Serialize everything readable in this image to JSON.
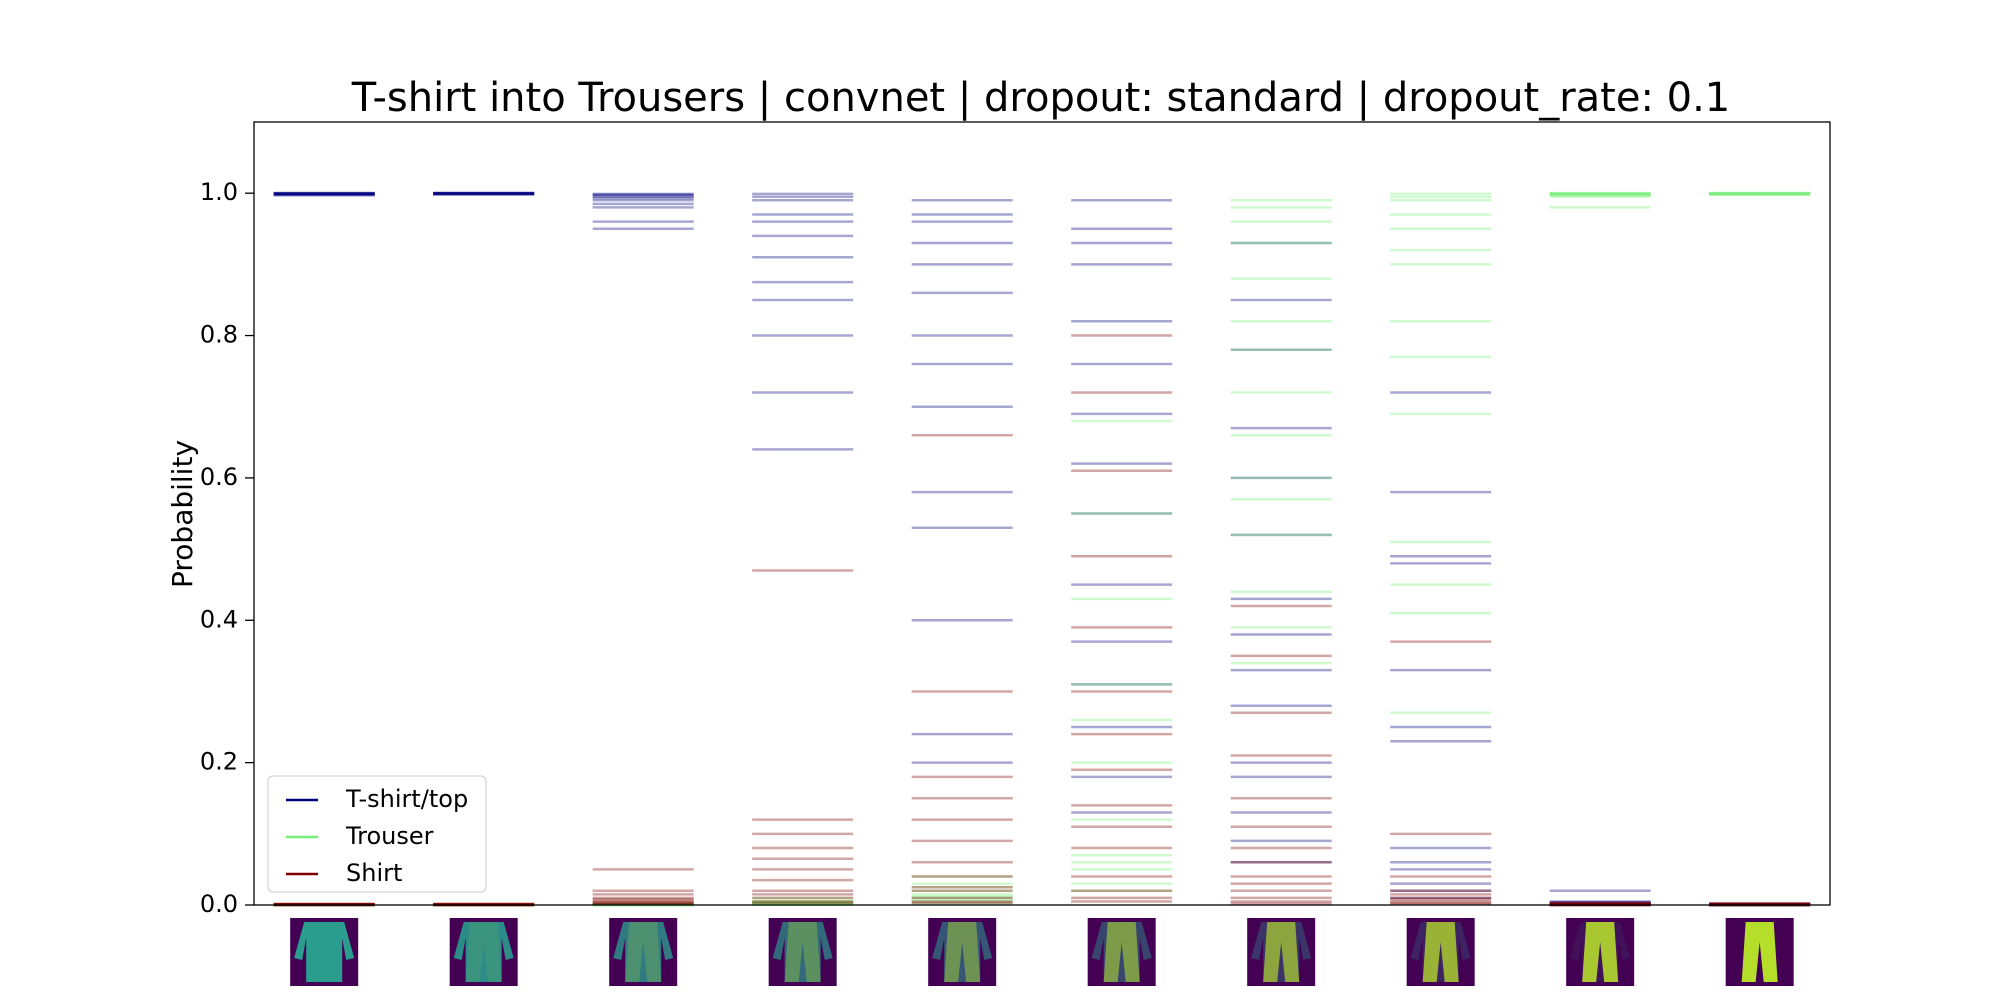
{
  "chart_data": {
    "type": "strip",
    "title": "T-shirt into Trousers | convnet | dropout: standard | dropout_rate: 0.1",
    "y_label": "Probability",
    "ylim": [
      0,
      1.1
    ],
    "yticks": [
      {
        "value": 0,
        "label": "0.0"
      },
      0.2,
      0.4,
      0.6,
      0.8,
      {
        "value": 1,
        "label": "1.0"
      }
    ],
    "legend": "lower left",
    "series": [
      {
        "name": "T-shirt/top",
        "color": "#000080",
        "values": [
          [
            0.999,
            1.0,
            0.998,
            0.999,
            1.0,
            0.999,
            0.997,
            1.0,
            0.999,
            0.998
          ],
          [
            1.0,
            0.999,
            1.0,
            0.999,
            0.998,
            1.0,
            0.999,
            1.0,
            0.999,
            1.0
          ],
          [
            0.999,
            0.995,
            0.99,
            0.985,
            0.998,
            0.96,
            0.95,
            0.993,
            0.997,
            0.98
          ],
          [
            0.999,
            0.99,
            0.97,
            0.94,
            0.91,
            0.875,
            0.85,
            0.8,
            0.72,
            0.64,
            0.995,
            0.96
          ],
          [
            0.99,
            0.96,
            0.93,
            0.9,
            0.86,
            0.8,
            0.76,
            0.7,
            0.58,
            0.53,
            0.4,
            0.24,
            0.2,
            0.97
          ],
          [
            0.99,
            0.95,
            0.9,
            0.82,
            0.76,
            0.69,
            0.62,
            0.55,
            0.45,
            0.37,
            0.31,
            0.25,
            0.18,
            0.13,
            0.93
          ],
          [
            0.93,
            0.85,
            0.78,
            0.67,
            0.6,
            0.52,
            0.43,
            0.38,
            0.33,
            0.28,
            0.2,
            0.18,
            0.13,
            0.09,
            0.06
          ],
          [
            0.72,
            0.58,
            0.49,
            0.48,
            0.33,
            0.25,
            0.23,
            0.08,
            0.06,
            0.05,
            0.03,
            0.02,
            0.01
          ],
          [
            0.02,
            0.005,
            0.001,
            0.003,
            0.0,
            0.002,
            0.001,
            0.0,
            0.004,
            0.001
          ],
          [
            0.001,
            0.0,
            0.002,
            0.001,
            0.0,
            0.001,
            0.0,
            0.002,
            0.001,
            0.0
          ]
        ]
      },
      {
        "name": "Trouser",
        "color": "#77ee77",
        "values": [
          [
            0.0,
            0.0,
            0.001,
            0.0,
            0.0,
            0.0,
            0.001,
            0.0,
            0.0,
            0.0
          ],
          [
            0.0,
            0.001,
            0.0,
            0.0,
            0.0,
            0.0,
            0.0,
            0.001,
            0.0,
            0.0
          ],
          [
            0.0,
            0.001,
            0.002,
            0.0,
            0.001,
            0.0,
            0.0,
            0.001,
            0.0,
            0.002
          ],
          [
            0.002,
            0.005,
            0.001,
            0.003,
            0.01,
            0.0,
            0.002,
            0.004,
            0.001,
            0.006
          ],
          [
            0.01,
            0.02,
            0.005,
            0.03,
            0.015,
            0.008,
            0.04,
            0.002,
            0.012,
            0.025
          ],
          [
            0.02,
            0.05,
            0.07,
            0.12,
            0.2,
            0.26,
            0.31,
            0.43,
            0.55,
            0.68,
            0.03,
            0.06
          ],
          [
            0.99,
            0.96,
            0.93,
            0.88,
            0.82,
            0.78,
            0.72,
            0.66,
            0.6,
            0.57,
            0.52,
            0.44,
            0.39,
            0.34,
            0.98
          ],
          [
            0.999,
            0.99,
            0.97,
            0.95,
            0.92,
            0.9,
            0.82,
            0.77,
            0.69,
            0.51,
            0.45,
            0.41,
            0.27,
            0.995
          ],
          [
            0.999,
            0.998,
            1.0,
            0.997,
            0.999,
            0.995,
            0.998,
            1.0,
            0.999,
            0.98
          ],
          [
            1.0,
            0.999,
            0.999,
            1.0,
            0.998,
            0.999,
            1.0,
            0.999,
            0.998,
            1.0
          ]
        ]
      },
      {
        "name": "Shirt",
        "color": "#800000",
        "values": [
          [
            0.001,
            0.0,
            0.001,
            0.002,
            0.0,
            0.001,
            0.0,
            0.001,
            0.0,
            0.001
          ],
          [
            0.0,
            0.001,
            0.0,
            0.001,
            0.002,
            0.0,
            0.001,
            0.0,
            0.001,
            0.0
          ],
          [
            0.001,
            0.004,
            0.01,
            0.02,
            0.05,
            0.003,
            0.006,
            0.002,
            0.015,
            0.008
          ],
          [
            0.005,
            0.01,
            0.02,
            0.035,
            0.05,
            0.065,
            0.08,
            0.1,
            0.12,
            0.47,
            0.015,
            0.003
          ],
          [
            0.003,
            0.01,
            0.02,
            0.04,
            0.06,
            0.09,
            0.12,
            0.15,
            0.18,
            0.3,
            0.66,
            0.025,
            0.005
          ],
          [
            0.005,
            0.02,
            0.04,
            0.08,
            0.11,
            0.14,
            0.19,
            0.24,
            0.3,
            0.39,
            0.49,
            0.61,
            0.72,
            0.8,
            0.01
          ],
          [
            0.002,
            0.01,
            0.02,
            0.04,
            0.06,
            0.08,
            0.11,
            0.15,
            0.21,
            0.27,
            0.35,
            0.42,
            0.005,
            0.03
          ],
          [
            0.001,
            0.005,
            0.01,
            0.02,
            0.04,
            0.1,
            0.37,
            0.003,
            0.015,
            0.008
          ],
          [
            0.001,
            0.002,
            0.0,
            0.001,
            0.003,
            0.0,
            0.001,
            0.002,
            0.0,
            0.001
          ],
          [
            0.001,
            0.0,
            0.001,
            0.002,
            0.0,
            0.001,
            0.0,
            0.001,
            0.002,
            0.0
          ]
        ]
      }
    ]
  }
}
